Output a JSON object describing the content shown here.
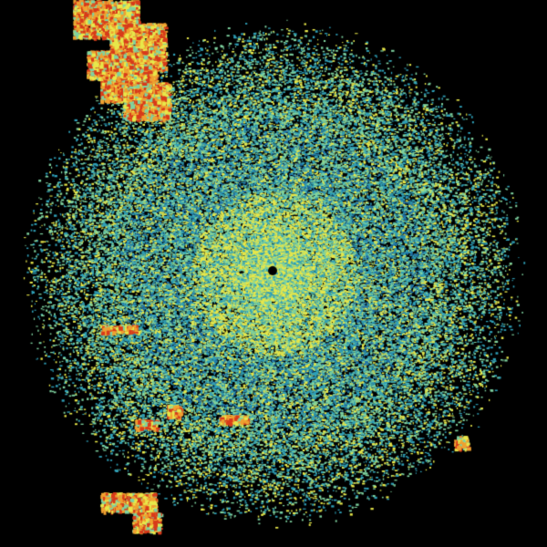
{
  "image": {
    "kind": "weather radar reflectivity sweep",
    "background": "#000000",
    "palette": {
      "weak": "#1f6fa8",
      "low": "#2fa0b8",
      "mid": "#7fd3a0",
      "moderate": "#e8e84a",
      "strong": "#f0a030",
      "heavy": "#d83a1a"
    }
  }
}
